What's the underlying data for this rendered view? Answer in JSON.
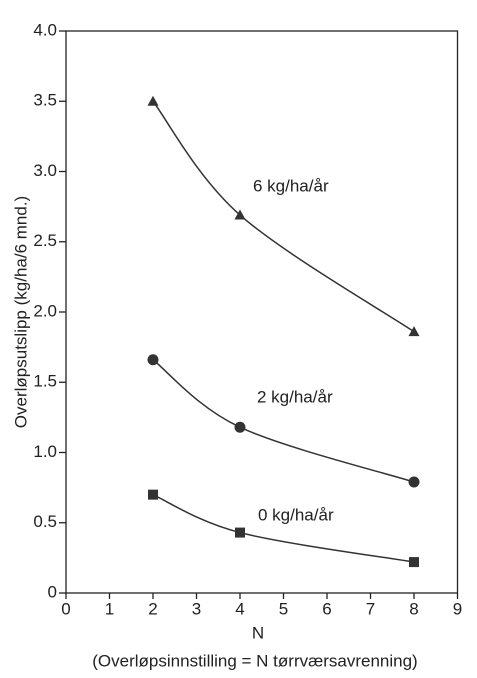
{
  "chart_data": {
    "type": "line",
    "x_label": "N",
    "subtitle": "(Overløpsinnstilling = N   tørrværsavrenning)",
    "y_label": "Overløpsutslipp (kg/ha/6 mnd.)",
    "x": [
      2,
      4,
      8
    ],
    "series": [
      {
        "name": "6 kg/ha/år",
        "color": "#333333",
        "marker": "triangle",
        "values": [
          3.5,
          2.69,
          1.86
        ]
      },
      {
        "name": "2 kg/ha/år",
        "color": "#333333",
        "marker": "circle",
        "values": [
          1.66,
          1.18,
          0.79
        ]
      },
      {
        "name": "0 kg/ha/år",
        "color": "#333333",
        "marker": "square",
        "values": [
          0.7,
          0.43,
          0.22
        ]
      }
    ],
    "xlim": [
      0,
      9
    ],
    "xticks": [
      0,
      1,
      2,
      3,
      4,
      5,
      6,
      7,
      8,
      9
    ],
    "ylim": [
      0,
      4
    ],
    "yticks": [
      0,
      0.5,
      {
        "value": 1,
        "label": "1.0"
      },
      1.5,
      {
        "value": 2,
        "label": "2.0"
      },
      2.5,
      {
        "value": 3,
        "label": "3.0"
      },
      3.5,
      {
        "value": 4,
        "label": "4.0"
      }
    ],
    "grid": false
  }
}
